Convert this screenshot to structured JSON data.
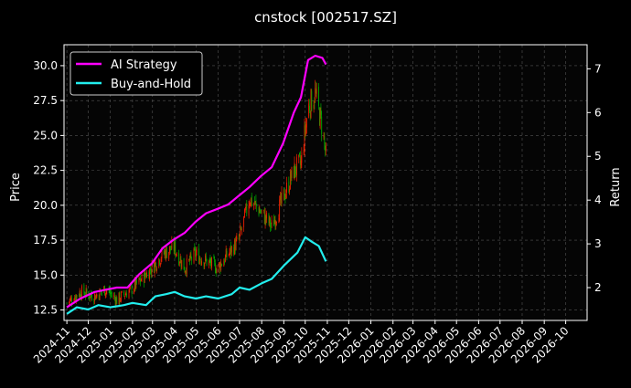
{
  "chart_data": {
    "type": "line",
    "title": "cnstock [002517.SZ]",
    "xlabel": "",
    "ylabel": "Price",
    "y2label": "Return",
    "x_range": [
      "2024-10-28",
      "2026-10-31"
    ],
    "ylim": [
      11.75,
      31.5
    ],
    "y2lim": [
      1.25,
      7.55
    ],
    "y_ticks": [
      "12.5",
      "15.0",
      "17.5",
      "20.0",
      "22.5",
      "25.0",
      "27.5",
      "30.0"
    ],
    "y2_ticks": [
      "2",
      "3",
      "4",
      "5",
      "6",
      "7"
    ],
    "x_ticks": [
      "2024-11",
      "2024-12",
      "2025-01",
      "2025-02",
      "2025-03",
      "2025-04",
      "2025-05",
      "2025-06",
      "2025-07",
      "2025-08",
      "2025-09",
      "2025-10",
      "2025-11",
      "2025-12",
      "2026-01",
      "2026-02",
      "2026-03",
      "2026-04",
      "2026-05",
      "2026-06",
      "2026-07",
      "2026-08",
      "2026-09",
      "2026-10"
    ],
    "grid": true,
    "legend_position": "top-left",
    "colors": {
      "background": "#000000",
      "ai_strategy": "#ff00ff",
      "buy_and_hold": "#22eeee",
      "candle_up": "#ee2200",
      "candle_down": "#00aa00",
      "grid": "#555555"
    },
    "series": [
      {
        "name": "AI Strategy",
        "axis": "right",
        "points": [
          [
            "2024-11-01",
            1.55
          ],
          [
            "2024-11-20",
            1.75
          ],
          [
            "2024-12-10",
            1.9
          ],
          [
            "2024-12-25",
            1.95
          ],
          [
            "2025-01-10",
            2.0
          ],
          [
            "2025-01-25",
            2.0
          ],
          [
            "2025-02-10",
            2.3
          ],
          [
            "2025-02-28",
            2.55
          ],
          [
            "2025-03-15",
            2.9
          ],
          [
            "2025-03-31",
            3.1
          ],
          [
            "2025-04-15",
            3.25
          ],
          [
            "2025-04-30",
            3.5
          ],
          [
            "2025-05-15",
            3.7
          ],
          [
            "2025-05-31",
            3.8
          ],
          [
            "2025-06-15",
            3.9
          ],
          [
            "2025-06-30",
            4.1
          ],
          [
            "2025-07-15",
            4.3
          ],
          [
            "2025-07-31",
            4.55
          ],
          [
            "2025-08-15",
            4.75
          ],
          [
            "2025-08-31",
            5.3
          ],
          [
            "2025-09-15",
            6.0
          ],
          [
            "2025-09-25",
            6.35
          ],
          [
            "2025-10-05",
            7.2
          ],
          [
            "2025-10-15",
            7.3
          ],
          [
            "2025-10-25",
            7.25
          ],
          [
            "2025-10-30",
            7.1
          ]
        ]
      },
      {
        "name": "Buy-and-Hold",
        "axis": "right",
        "points": [
          [
            "2024-11-01",
            1.4
          ],
          [
            "2024-11-15",
            1.55
          ],
          [
            "2024-12-01",
            1.5
          ],
          [
            "2024-12-15",
            1.6
          ],
          [
            "2025-01-01",
            1.55
          ],
          [
            "2025-01-20",
            1.6
          ],
          [
            "2025-02-01",
            1.65
          ],
          [
            "2025-02-20",
            1.6
          ],
          [
            "2025-03-05",
            1.8
          ],
          [
            "2025-03-20",
            1.85
          ],
          [
            "2025-04-01",
            1.9
          ],
          [
            "2025-04-15",
            1.8
          ],
          [
            "2025-05-01",
            1.75
          ],
          [
            "2025-05-15",
            1.8
          ],
          [
            "2025-06-01",
            1.75
          ],
          [
            "2025-06-20",
            1.85
          ],
          [
            "2025-07-01",
            2.0
          ],
          [
            "2025-07-15",
            1.95
          ],
          [
            "2025-08-01",
            2.1
          ],
          [
            "2025-08-15",
            2.2
          ],
          [
            "2025-09-01",
            2.5
          ],
          [
            "2025-09-20",
            2.8
          ],
          [
            "2025-10-01",
            3.15
          ],
          [
            "2025-10-10",
            3.05
          ],
          [
            "2025-10-20",
            2.95
          ],
          [
            "2025-10-30",
            2.6
          ]
        ]
      }
    ],
    "price_series": {
      "name": "Price",
      "axis": "left",
      "points": [
        [
          "2024-11-01",
          13.0
        ],
        [
          "2024-11-20",
          13.8
        ],
        [
          "2024-12-10",
          13.5
        ],
        [
          "2024-12-25",
          14.0
        ],
        [
          "2025-01-10",
          13.2
        ],
        [
          "2025-01-25",
          13.8
        ],
        [
          "2025-02-10",
          14.5
        ],
        [
          "2025-02-28",
          15.5
        ],
        [
          "2025-03-15",
          16.5
        ],
        [
          "2025-03-31",
          17.0
        ],
        [
          "2025-04-15",
          15.5
        ],
        [
          "2025-04-30",
          16.5
        ],
        [
          "2025-05-15",
          16.0
        ],
        [
          "2025-05-31",
          15.5
        ],
        [
          "2025-06-15",
          16.5
        ],
        [
          "2025-06-30",
          17.5
        ],
        [
          "2025-07-15",
          20.5
        ],
        [
          "2025-07-31",
          19.5
        ],
        [
          "2025-08-15",
          18.5
        ],
        [
          "2025-08-31",
          20.5
        ],
        [
          "2025-09-15",
          22.5
        ],
        [
          "2025-09-25",
          23.0
        ],
        [
          "2025-10-05",
          27.0
        ],
        [
          "2025-10-15",
          28.0
        ],
        [
          "2025-10-25",
          25.5
        ],
        [
          "2025-10-30",
          23.5
        ]
      ]
    }
  }
}
